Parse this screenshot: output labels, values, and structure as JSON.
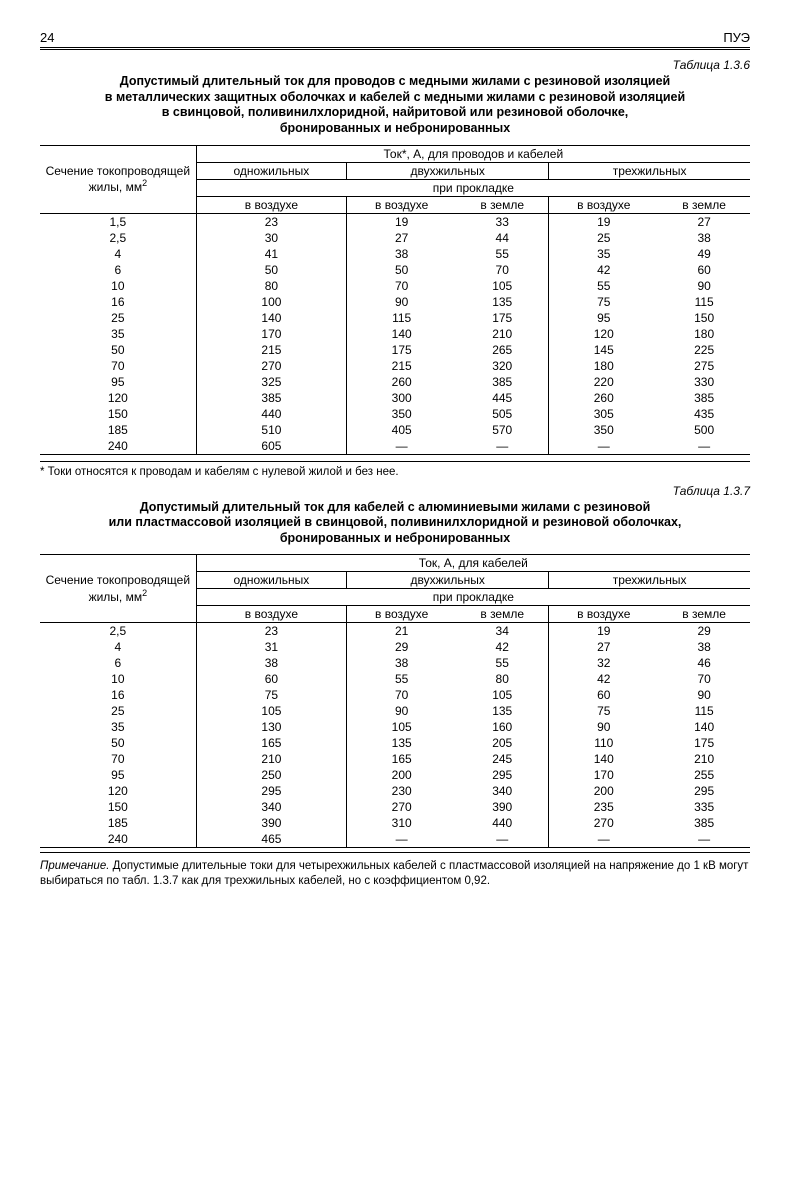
{
  "header": {
    "page_number": "24",
    "doc_code": "ПУЭ"
  },
  "table1": {
    "number": "Таблица 1.3.6",
    "title_lines": [
      "Допустимый длительный ток для проводов с медными жилами с резиновой изоляцией",
      "в металлических защитных оболочках и кабелей с медными жилами с резиновой изоляцией",
      "в свинцовой, поливинилхлоридной, найритовой или резиновой оболочке,",
      "бронированных и небронированных"
    ],
    "rowhead_line1": "Сечение токопроводящей",
    "rowhead_line2": "жилы, мм",
    "rowhead_sup": "2",
    "top_header": "Ток*, А, для проводов и кабелей",
    "group_headers": [
      "одножильных",
      "двухжильных",
      "трехжильных"
    ],
    "subheader": "при прокладке",
    "col_headers": [
      "в воздухе",
      "в воздухе",
      "в земле",
      "в воздухе",
      "в земле"
    ],
    "rows": [
      [
        "1,5",
        "23",
        "19",
        "33",
        "19",
        "27"
      ],
      [
        "2,5",
        "30",
        "27",
        "44",
        "25",
        "38"
      ],
      [
        "4",
        "41",
        "38",
        "55",
        "35",
        "49"
      ],
      [
        "6",
        "50",
        "50",
        "70",
        "42",
        "60"
      ],
      [
        "10",
        "80",
        "70",
        "105",
        "55",
        "90"
      ],
      [
        "16",
        "100",
        "90",
        "135",
        "75",
        "115"
      ],
      [
        "25",
        "140",
        "115",
        "175",
        "95",
        "150"
      ],
      [
        "35",
        "170",
        "140",
        "210",
        "120",
        "180"
      ],
      [
        "50",
        "215",
        "175",
        "265",
        "145",
        "225"
      ],
      [
        "70",
        "270",
        "215",
        "320",
        "180",
        "275"
      ],
      [
        "95",
        "325",
        "260",
        "385",
        "220",
        "330"
      ],
      [
        "120",
        "385",
        "300",
        "445",
        "260",
        "385"
      ],
      [
        "150",
        "440",
        "350",
        "505",
        "305",
        "435"
      ],
      [
        "185",
        "510",
        "405",
        "570",
        "350",
        "500"
      ],
      [
        "240",
        "605",
        "—",
        "—",
        "—",
        "—"
      ]
    ],
    "footnote": "* Токи относятся к проводам и кабелям с нулевой жилой и без нее."
  },
  "table2": {
    "number": "Таблица 1.3.7",
    "title_lines": [
      "Допустимый длительный ток для кабелей с алюминиевыми жилами с резиновой",
      "или пластмассовой изоляцией в свинцовой, поливинилхлоридной и резиновой оболочках,",
      "бронированных и небронированных"
    ],
    "rowhead_line1": "Сечение токопроводящей",
    "rowhead_line2": "жилы, мм",
    "rowhead_sup": "2",
    "top_header": "Ток, А, для кабелей",
    "group_headers": [
      "одножильных",
      "двухжильных",
      "трехжильных"
    ],
    "subheader": "при прокладке",
    "col_headers": [
      "в воздухе",
      "в воздухе",
      "в земле",
      "в воздухе",
      "в земле"
    ],
    "rows": [
      [
        "2,5",
        "23",
        "21",
        "34",
        "19",
        "29"
      ],
      [
        "4",
        "31",
        "29",
        "42",
        "27",
        "38"
      ],
      [
        "6",
        "38",
        "38",
        "55",
        "32",
        "46"
      ],
      [
        "10",
        "60",
        "55",
        "80",
        "42",
        "70"
      ],
      [
        "16",
        "75",
        "70",
        "105",
        "60",
        "90"
      ],
      [
        "25",
        "105",
        "90",
        "135",
        "75",
        "115"
      ],
      [
        "35",
        "130",
        "105",
        "160",
        "90",
        "140"
      ],
      [
        "50",
        "165",
        "135",
        "205",
        "110",
        "175"
      ],
      [
        "70",
        "210",
        "165",
        "245",
        "140",
        "210"
      ],
      [
        "95",
        "250",
        "200",
        "295",
        "170",
        "255"
      ],
      [
        "120",
        "295",
        "230",
        "340",
        "200",
        "295"
      ],
      [
        "150",
        "340",
        "270",
        "390",
        "235",
        "335"
      ],
      [
        "185",
        "390",
        "310",
        "440",
        "270",
        "385"
      ],
      [
        "240",
        "465",
        "—",
        "—",
        "—",
        "—"
      ]
    ],
    "note_label": "Примечание.",
    "note_text": " Допустимые длительные токи для четырехжильных кабелей с пластмассовой изоляцией на напряжение до 1 кВ могут выбираться по табл. 1.3.7 как для трехжильных кабелей, но с коэффициентом 0,92."
  }
}
